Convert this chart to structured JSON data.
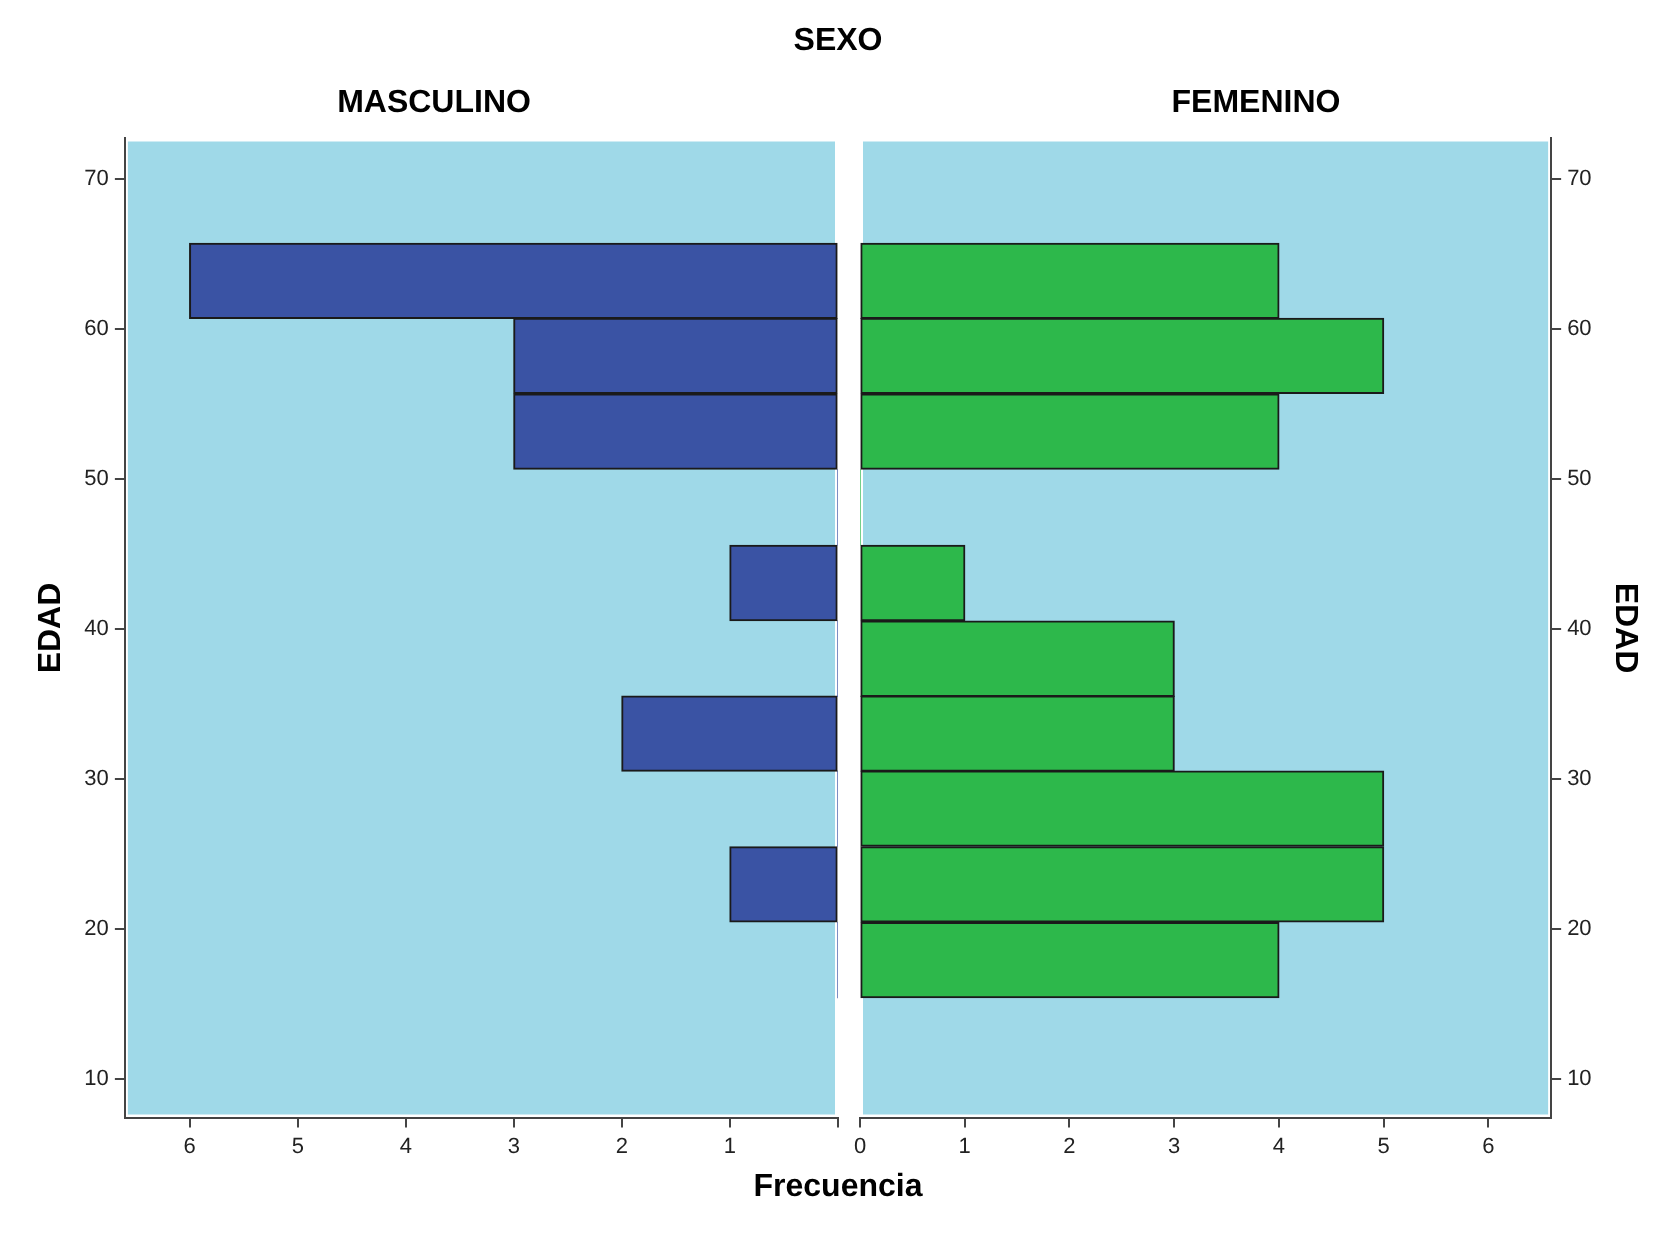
{
  "chart_data": [
    {
      "type": "histogram",
      "orientation": "horizontal",
      "title": "SEXO",
      "xlabel": "Frecuencia",
      "ylabel": "EDAD",
      "bins": [
        15.4,
        20.4,
        25.5,
        30.5,
        35.5,
        40.5,
        45.6,
        50.6,
        55.7,
        60.7,
        65.7
      ],
      "series": [
        {
          "name": "MASCULINO",
          "color": "#3a53a4",
          "values": [
            0,
            1,
            0,
            2,
            0,
            1,
            0,
            3,
            3,
            6
          ]
        }
      ],
      "xlim": [
        6.6,
        0
      ],
      "xticks": [
        6,
        5,
        4,
        3,
        2,
        1,
        {
          "value": 0,
          "label": null
        }
      ],
      "ylim": [
        7.4,
        72.7
      ],
      "yticks": [
        10,
        20,
        30,
        40,
        50,
        60,
        70
      ],
      "grid": false,
      "legend": false
    },
    {
      "type": "histogram",
      "orientation": "horizontal",
      "ylabel": "EDAD",
      "bins": [
        15.4,
        20.4,
        25.5,
        30.5,
        35.5,
        40.5,
        45.6,
        50.6,
        55.7,
        60.7,
        65.7
      ],
      "series": [
        {
          "name": "FEMENINO",
          "color": "#2db84b",
          "values": [
            4,
            5,
            5,
            3,
            3,
            1,
            0,
            4,
            5,
            4
          ]
        }
      ],
      "xlim": [
        0,
        6.6
      ],
      "xticks": [
        0,
        1,
        2,
        3,
        4,
        5,
        6
      ],
      "ylim": [
        7.4,
        72.7
      ],
      "yticks": [
        10,
        20,
        30,
        40,
        50,
        60,
        70
      ],
      "grid": false,
      "legend": false
    }
  ]
}
